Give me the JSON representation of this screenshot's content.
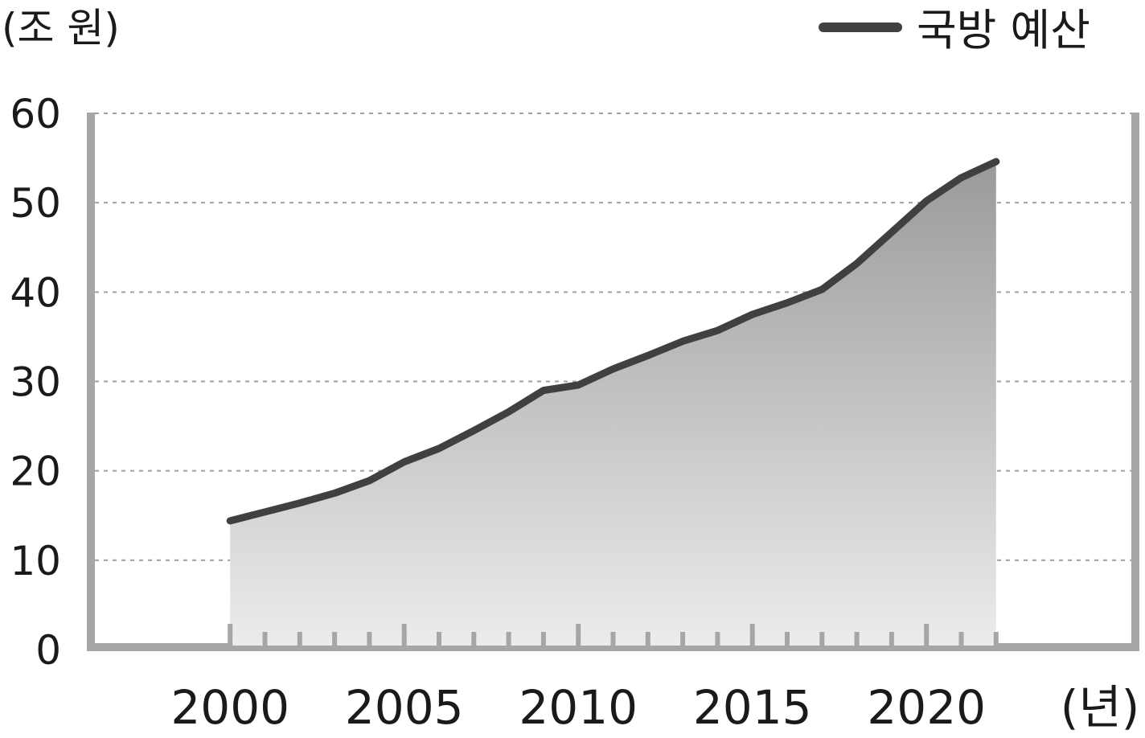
{
  "chart_data": {
    "type": "area",
    "ylabel": "(조 원)",
    "xlabel": "(년)",
    "ylim": [
      0,
      60
    ],
    "xlim": [
      1996,
      2026
    ],
    "yticks": [
      0,
      10,
      20,
      30,
      40,
      50,
      60
    ],
    "xticks": [
      2000,
      2005,
      2010,
      2015,
      2020
    ],
    "grid": true,
    "legend_position": "top-right",
    "series": [
      {
        "name": "국방 예산",
        "color": "#404040",
        "x": [
          2000,
          2001,
          2002,
          2003,
          2004,
          2005,
          2006,
          2007,
          2008,
          2009,
          2010,
          2011,
          2012,
          2013,
          2014,
          2015,
          2016,
          2017,
          2018,
          2019,
          2020,
          2021,
          2022
        ],
        "y": [
          14.4,
          15.4,
          16.4,
          17.5,
          18.9,
          21.0,
          22.5,
          24.5,
          26.6,
          29.0,
          29.6,
          31.4,
          32.9,
          34.5,
          35.7,
          37.5,
          38.8,
          40.3,
          43.2,
          46.7,
          50.2,
          52.8,
          54.6
        ]
      }
    ]
  }
}
